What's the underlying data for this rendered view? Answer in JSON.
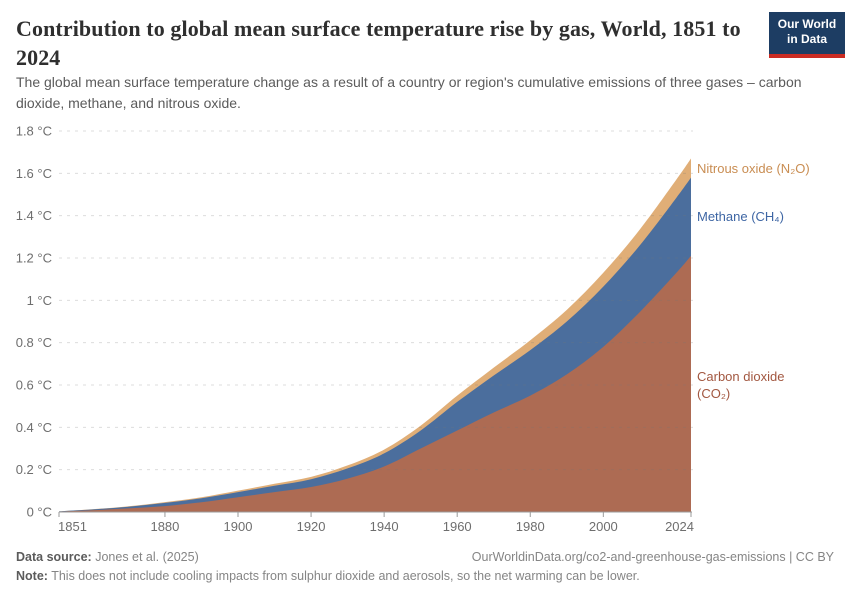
{
  "header": {
    "title": "Contribution to global mean surface temperature rise by gas, World, 1851 to 2024",
    "subtitle": "The global mean surface temperature change as a result of a country or region's cumulative emissions of three gases – carbon dioxide, methane, and nitrous oxide.",
    "logo": {
      "line1": "Our World",
      "line2": "in Data"
    }
  },
  "chart_data": {
    "type": "area",
    "stacked": true,
    "title": "Contribution to global mean surface temperature rise by gas, World, 1851 to 2024",
    "xlabel": "",
    "ylabel": "°C",
    "x_range": [
      1851,
      2024
    ],
    "ylim": [
      0,
      1.8
    ],
    "grid": "dashed-horizontal",
    "legend_position": "right-of-plot",
    "x": [
      1851,
      1860,
      1870,
      1880,
      1890,
      1900,
      1910,
      1920,
      1930,
      1940,
      1950,
      1960,
      1970,
      1980,
      1990,
      2000,
      2010,
      2020,
      2024
    ],
    "series": [
      {
        "name": "Carbon dioxide (CO₂)",
        "area_color": "#ad6b53",
        "label_color": "#a25740",
        "values": [
          0.002,
          0.008,
          0.017,
          0.028,
          0.046,
          0.07,
          0.094,
          0.118,
          0.158,
          0.215,
          0.3,
          0.385,
          0.47,
          0.55,
          0.65,
          0.78,
          0.945,
          1.13,
          1.21
        ]
      },
      {
        "name": "Methane (CH₄)",
        "area_color": "#4b6e9d",
        "label_color": "#3e66a4",
        "values": [
          0.001,
          0.004,
          0.008,
          0.015,
          0.019,
          0.024,
          0.03,
          0.037,
          0.048,
          0.062,
          0.085,
          0.135,
          0.175,
          0.215,
          0.25,
          0.285,
          0.315,
          0.355,
          0.37
        ]
      },
      {
        "name": "Nitrous oxide (N₂O)",
        "area_color": "#e0ae77",
        "label_color": "#c98d52",
        "values": [
          0.0,
          0.001,
          0.002,
          0.004,
          0.005,
          0.007,
          0.009,
          0.011,
          0.014,
          0.018,
          0.023,
          0.03,
          0.037,
          0.046,
          0.055,
          0.065,
          0.075,
          0.086,
          0.09
        ]
      }
    ],
    "y_ticks": [
      {
        "value": 0.0,
        "label": "0 °C"
      },
      {
        "value": 0.2,
        "label": "0.2 °C"
      },
      {
        "value": 0.4,
        "label": "0.4 °C"
      },
      {
        "value": 0.6,
        "label": "0.6 °C"
      },
      {
        "value": 0.8,
        "label": "0.8 °C"
      },
      {
        "value": 1.0,
        "label": "1 °C"
      },
      {
        "value": 1.2,
        "label": "1.2 °C"
      },
      {
        "value": 1.4,
        "label": "1.4 °C"
      },
      {
        "value": 1.6,
        "label": "1.6 °C"
      },
      {
        "value": 1.8,
        "label": "1.8 °C"
      }
    ],
    "x_ticks": [
      1851,
      1880,
      1900,
      1920,
      1940,
      1960,
      1980,
      2000,
      2024
    ]
  },
  "series_labels": {
    "n2o": "Nitrous oxide (N₂O)",
    "ch4": "Methane (CH₄)",
    "co2": "Carbon dioxide (CO₂)"
  },
  "footer": {
    "source_label": "Data source:",
    "source_text": " Jones et al. (2025)",
    "url_text": "OurWorldinData.org/co2-and-greenhouse-gas-emissions | CC BY",
    "note_label": "Note:",
    "note_text": " This does not include cooling impacts from sulphur dioxide and aerosols, so the net warming can be lower."
  },
  "colors": {
    "logo_bg": "#1d3d63",
    "logo_red": "#cb2c23",
    "gridline": "#777777",
    "axis_line": "#9a9a9a",
    "tick_text": "#6e6e6e"
  }
}
